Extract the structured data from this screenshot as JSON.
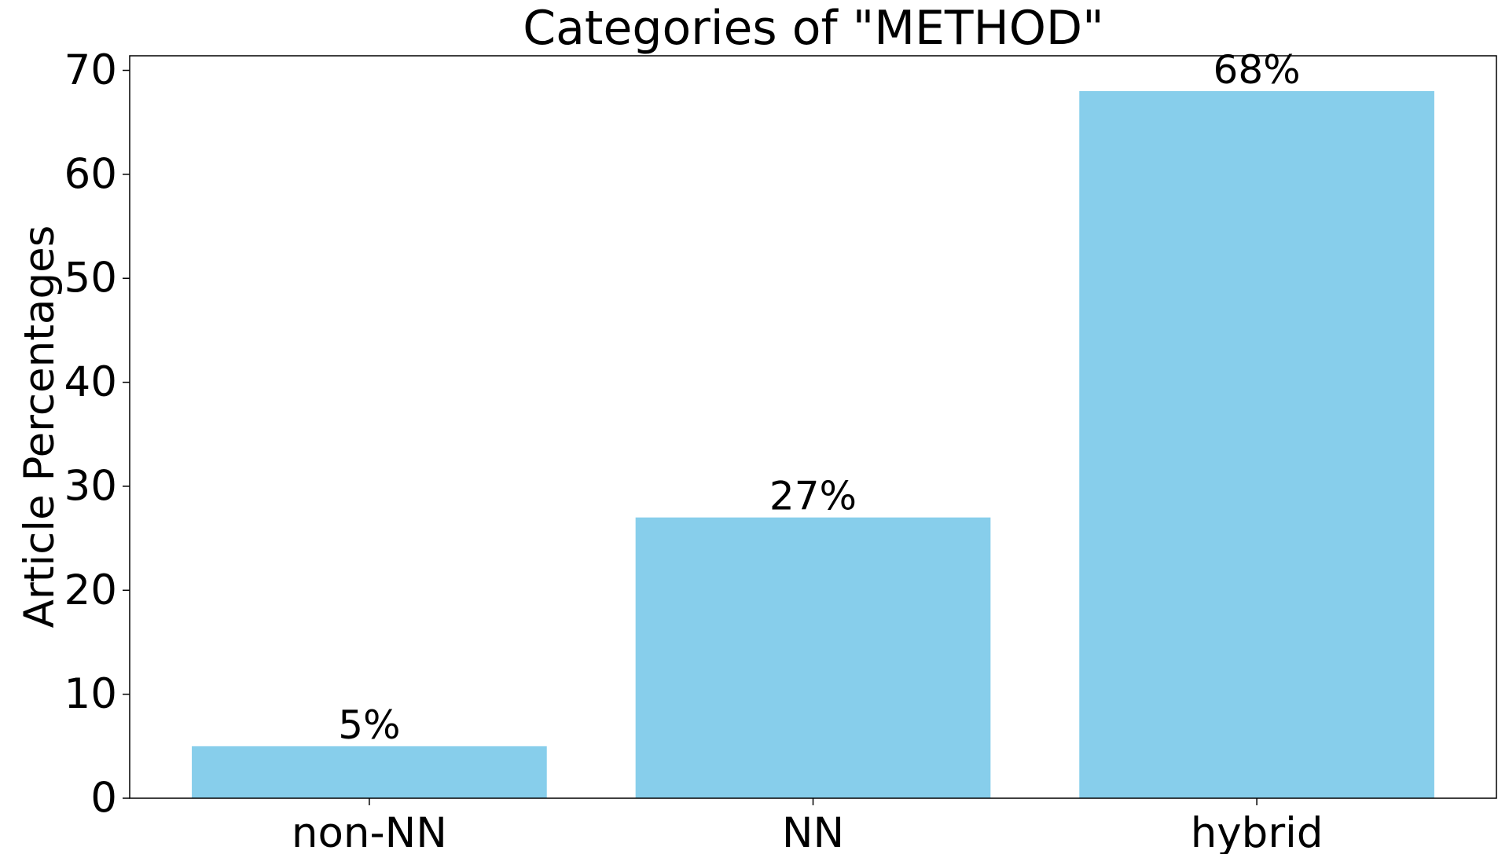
{
  "chart_data": {
    "type": "bar",
    "title": "Categories of \"METHOD\"",
    "ylabel": "Article Percentages",
    "categories": [
      "non-NN",
      "NN",
      "hybrid"
    ],
    "values": [
      5,
      27,
      68
    ],
    "value_labels": [
      "5%",
      "27%",
      "68%"
    ],
    "color": "#87ceeb",
    "ylim": [
      0,
      71.4
    ],
    "yticks": [
      0,
      10,
      20,
      30,
      40,
      50,
      60,
      70
    ],
    "grid": false
  }
}
